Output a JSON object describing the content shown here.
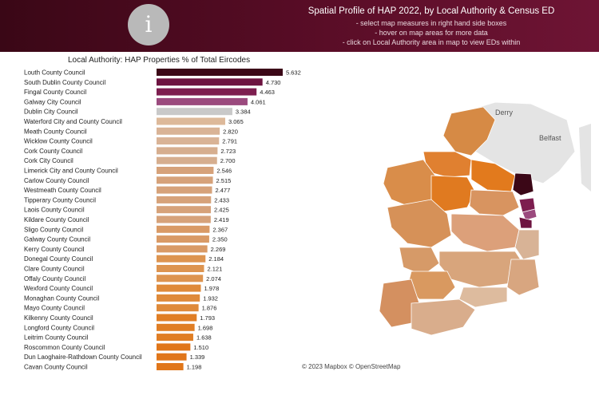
{
  "header": {
    "info_icon": "i",
    "title": "Spatial Profile of HAP 2022, by Local Authority & Census ED",
    "lines": [
      "- select map measures in right hand side boxes",
      "- hover on map areas for more data",
      "- click on Local Authority area in map to view EDs within"
    ],
    "background_color": "#4b0a1f"
  },
  "chart_data": {
    "type": "bar",
    "orientation": "horizontal",
    "title": "Local Authority: HAP Properties % of Total Eircodes",
    "categories": [
      "Louth County Council",
      "South Dublin County Council",
      "Fingal County Council",
      "Galway City Council",
      "Dublin City Council",
      "Waterford City and County Council",
      "Meath County Council",
      "Wicklow County Council",
      "Cork County Council",
      "Cork City Council",
      "Limerick City and County Council",
      "Carlow County Council",
      "Westmeath County Council",
      "Tipperary County Council",
      "Laois County Council",
      "Kildare County Council",
      "Sligo County Council",
      "Galway County Council",
      "Kerry County Council",
      "Donegal County Council",
      "Clare County Council",
      "Offaly County Council",
      "Wexford County Council",
      "Monaghan County Council",
      "Mayo County Council",
      "Kilkenny County Council",
      "Longford County Council",
      "Leitrim County Council",
      "Roscommon County Council",
      "Dun Laoghaire-Rathdown County Council",
      "Cavan County Council"
    ],
    "values": [
      5.632,
      4.73,
      4.463,
      4.061,
      3.384,
      3.065,
      2.82,
      2.791,
      2.723,
      2.7,
      2.546,
      2.515,
      2.477,
      2.433,
      2.425,
      2.419,
      2.367,
      2.35,
      2.269,
      2.184,
      2.121,
      2.074,
      1.978,
      1.932,
      1.876,
      1.793,
      1.698,
      1.638,
      1.51,
      1.339,
      1.198
    ],
    "value_labels": [
      "5.632",
      "4.730",
      "4.463",
      "4.061",
      "3.384",
      "3.065",
      "2.820",
      "2.791",
      "2.723",
      "2.700",
      "2.546",
      "2.515",
      "2.477",
      "2.433",
      "2.425",
      "2.419",
      "2.367",
      "2.350",
      "2.269",
      "2.184",
      "2.121",
      "2.074",
      "1.978",
      "1.932",
      "1.876",
      "1.793",
      "1.698",
      "1.638",
      "1.510",
      "1.339",
      "1.198"
    ],
    "colors": [
      "#3b0717",
      "#6d1340",
      "#7d1e4f",
      "#9b4a7e",
      "#c9c9c9",
      "#ddb99a",
      "#d9b396",
      "#d9b396",
      "#d6ae8f",
      "#d6ae8f",
      "#d6a27a",
      "#d6a27a",
      "#d6a27a",
      "#d6a27a",
      "#d6a27a",
      "#d6a27a",
      "#d99a66",
      "#d99a66",
      "#d99a66",
      "#dd9450",
      "#dd9450",
      "#dd9450",
      "#df8a3a",
      "#df8a3a",
      "#df8a3a",
      "#e07e25",
      "#e07e25",
      "#e07e25",
      "#e0761a",
      "#e0761a",
      "#e0761a"
    ],
    "xlim": [
      0,
      5.632
    ]
  },
  "map": {
    "labels": [
      "Derry",
      "Belfast"
    ],
    "copyright": "© 2023 Mapbox  © OpenStreetMap"
  }
}
